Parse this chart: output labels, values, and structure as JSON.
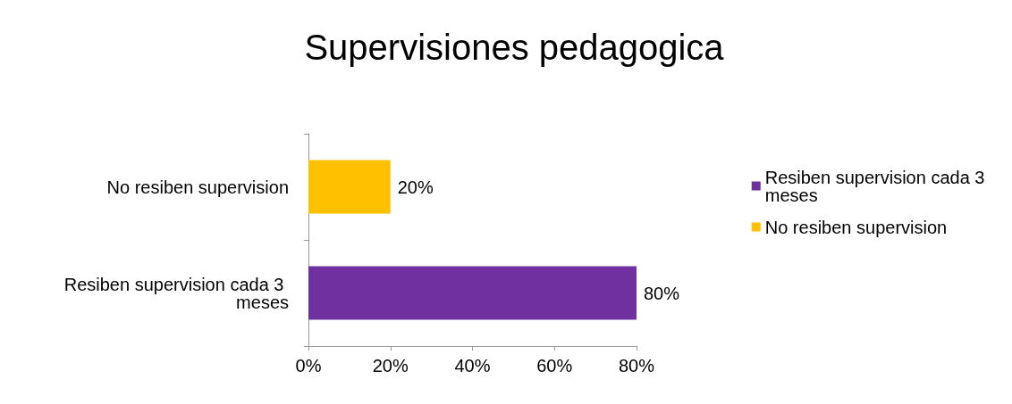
{
  "chart_data": {
    "type": "bar",
    "orientation": "horizontal",
    "title": "Supervisiones pedagogica",
    "categories": [
      "No resiben supervision",
      "Resiben supervision cada 3 meses"
    ],
    "series": [
      {
        "name": "Resiben supervision cada 3 meses",
        "color": "#7030a0",
        "values": [
          null,
          80
        ],
        "value_labels": [
          null,
          "80%"
        ]
      },
      {
        "name": "No resiben supervision",
        "color": "#ffc000",
        "values": [
          20,
          null
        ],
        "value_labels": [
          "20%",
          null
        ]
      }
    ],
    "xlim": [
      0,
      80
    ],
    "xticks": [
      {
        "value": 0,
        "label": "0%"
      },
      {
        "value": 20,
        "label": "20%"
      },
      {
        "value": 40,
        "label": "40%"
      },
      {
        "value": 60,
        "label": "60%"
      },
      {
        "value": 80,
        "label": "80%"
      }
    ],
    "grid": false,
    "legend": "right"
  }
}
